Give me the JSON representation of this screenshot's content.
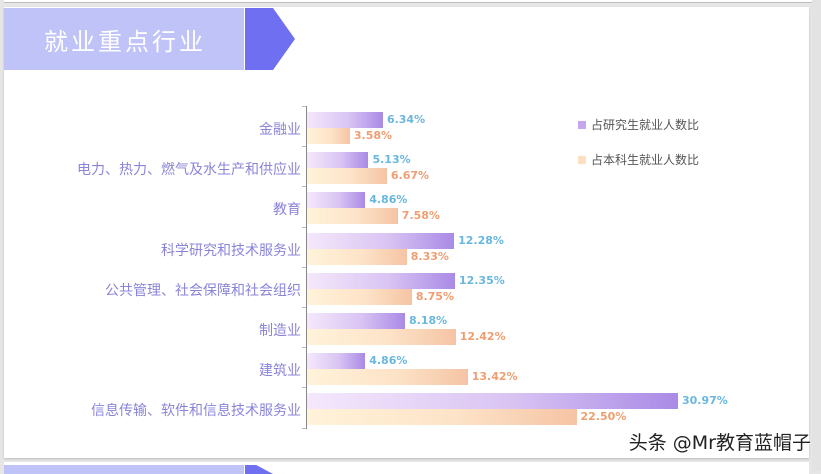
{
  "header": {
    "title": "就业重点行业"
  },
  "legend": [
    {
      "label": "占研究生就业人数比",
      "color": "#c3a8ee"
    },
    {
      "label": "占本科生就业人数比",
      "color": "#fde0c4"
    }
  ],
  "watermark": "头条 @Mr教育蓝帽子",
  "colors": {
    "title_bg": "#bfc3f7",
    "title_arrow": "#6f6ff2",
    "category_label": "#8a84d9",
    "postgrad_value": "#6ab7de",
    "undergrad_value": "#ef9e72"
  },
  "rows": [
    {
      "category": "金融业",
      "postgrad": "6.34%",
      "undergrad": "3.58%"
    },
    {
      "category": "电力、热力、燃气及水生产和供应业",
      "postgrad": "5.13%",
      "undergrad": "6.67%"
    },
    {
      "category": "教育",
      "postgrad": "4.86%",
      "undergrad": "7.58%"
    },
    {
      "category": "科学研究和技术服务业",
      "postgrad": "12.28%",
      "undergrad": "8.33%"
    },
    {
      "category": "公共管理、社会保障和社会组织",
      "postgrad": "12.35%",
      "undergrad": "8.75%"
    },
    {
      "category": "制造业",
      "postgrad": "8.18%",
      "undergrad": "12.42%"
    },
    {
      "category": "建筑业",
      "postgrad": "4.86%",
      "undergrad": "13.42%"
    },
    {
      "category": "信息传输、软件和信息技术服务业",
      "postgrad": "30.97%",
      "undergrad": "22.50%"
    }
  ],
  "chart_data": {
    "type": "bar",
    "orientation": "horizontal",
    "title": "就业重点行业",
    "categories": [
      "金融业",
      "电力、热力、燃气及水生产和供应业",
      "教育",
      "科学研究和技术服务业",
      "公共管理、社会保障和社会组织",
      "制造业",
      "建筑业",
      "信息传输、软件和信息技术服务业"
    ],
    "series": [
      {
        "name": "占研究生就业人数比",
        "values": [
          6.34,
          5.13,
          4.86,
          12.28,
          12.35,
          8.18,
          4.86,
          30.97
        ],
        "color": "#b596ea"
      },
      {
        "name": "占本科生就业人数比",
        "values": [
          3.58,
          6.67,
          7.58,
          8.33,
          8.75,
          12.42,
          13.42,
          22.5
        ],
        "color": "#fbd7bb"
      }
    ],
    "xlabel": "",
    "ylabel": "",
    "value_format": "percent, 2 decimals",
    "data_labels": true,
    "grid": false,
    "legend_position": "top-right"
  }
}
